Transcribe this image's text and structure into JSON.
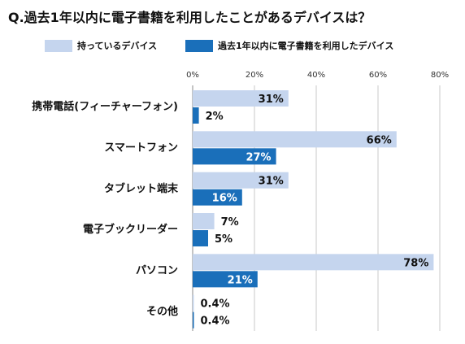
{
  "chart_data": {
    "type": "bar",
    "orientation": "horizontal",
    "title": "Q.過去1年以内に電子書籍を利用したことがあるデバイスは？",
    "categories": [
      "携帯電話(フィーチャーフォン)",
      "スマートフォン",
      "タブレット端末",
      "電子ブックリーダー",
      "パソコン",
      "その他"
    ],
    "series": [
      {
        "name": "持っているデバイス",
        "values": [
          31,
          66,
          31,
          7,
          78,
          0.4
        ],
        "labels": [
          "31%",
          "66%",
          "31%",
          "7%",
          "78%",
          "0.4%"
        ],
        "color": "#c5d5ee"
      },
      {
        "name": "過去1年以内に電子書籍を利用したデバイス",
        "values": [
          2,
          27,
          16,
          5,
          21,
          0.4
        ],
        "labels": [
          "2%",
          "27%",
          "16%",
          "5%",
          "21%",
          "0.4%"
        ],
        "color": "#1a6fba"
      }
    ],
    "xlim": [
      0,
      80
    ],
    "xticks": [
      "0%",
      "20%",
      "40%",
      "60%",
      "80%"
    ],
    "grid": true,
    "legend_position": "top"
  }
}
